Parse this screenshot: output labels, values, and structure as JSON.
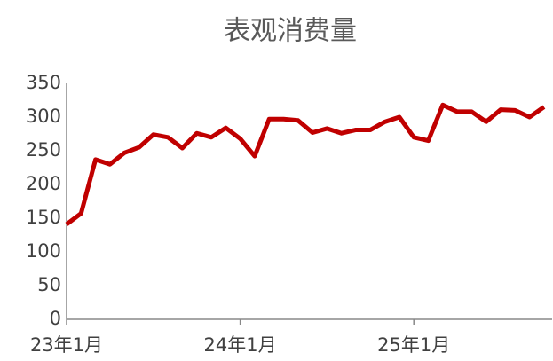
{
  "chart_data": {
    "type": "line",
    "title": "表观消费量",
    "categories": [
      "23年1月",
      null,
      null,
      null,
      null,
      null,
      null,
      null,
      null,
      null,
      null,
      null,
      "24年1月",
      null,
      null,
      null,
      null,
      null,
      null,
      null,
      null,
      null,
      null,
      null,
      "25年1月",
      null,
      null,
      null,
      null,
      null,
      null,
      null,
      null,
      null
    ],
    "series": [
      {
        "name": "表观消费量",
        "color": "#c00000",
        "values": [
          141,
          157,
          237,
          230,
          247,
          255,
          274,
          270,
          254,
          276,
          270,
          284,
          268,
          242,
          297,
          297,
          295,
          277,
          283,
          276,
          281,
          281,
          293,
          300,
          270,
          265,
          318,
          308,
          308,
          293,
          311,
          310,
          300,
          315
        ]
      }
    ],
    "ylim": [
      0,
      350
    ],
    "yticks": [
      0,
      50,
      100,
      150,
      200,
      250,
      300,
      350
    ],
    "grid": false
  }
}
